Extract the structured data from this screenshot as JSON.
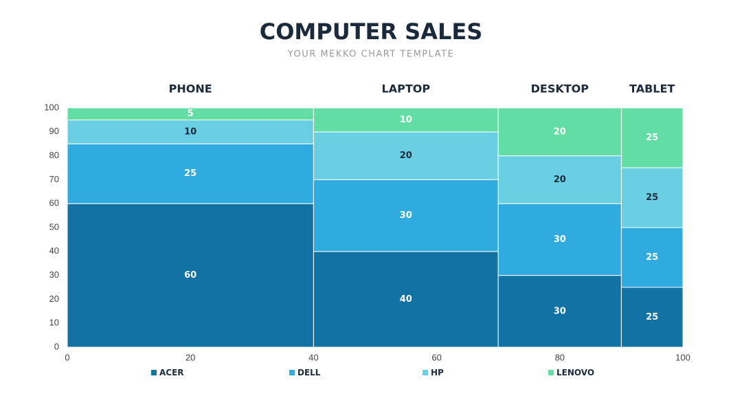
{
  "chart_data": {
    "type": "mekko",
    "title": "COMPUTER SALES",
    "subtitle": "YOUR MEKKO CHART TEMPLATE",
    "categories": [
      "PHONE",
      "LAPTOP",
      "DESKTOP",
      "TABLET"
    ],
    "widths": [
      40,
      30,
      20,
      10
    ],
    "series": [
      {
        "name": "ACER",
        "color": "#1272a3",
        "label_color": "#ffffff",
        "values": [
          60,
          40,
          30,
          25
        ]
      },
      {
        "name": "DELL",
        "color": "#30abe0",
        "label_color": "#ffffff",
        "values": [
          25,
          30,
          30,
          25
        ]
      },
      {
        "name": "HP",
        "color": "#6acfe3",
        "label_color": "#1b2a3b",
        "values": [
          10,
          20,
          20,
          25
        ]
      },
      {
        "name": "LENOVO",
        "color": "#62dea5",
        "label_color": "#ffffff",
        "values": [
          5,
          10,
          20,
          25
        ]
      }
    ],
    "xlim": [
      0,
      100
    ],
    "xticks": [
      0,
      20,
      40,
      60,
      80,
      100
    ],
    "ylim": [
      0,
      100
    ],
    "yticks": [
      0,
      10,
      20,
      30,
      40,
      50,
      60,
      70,
      80,
      90,
      100
    ]
  }
}
